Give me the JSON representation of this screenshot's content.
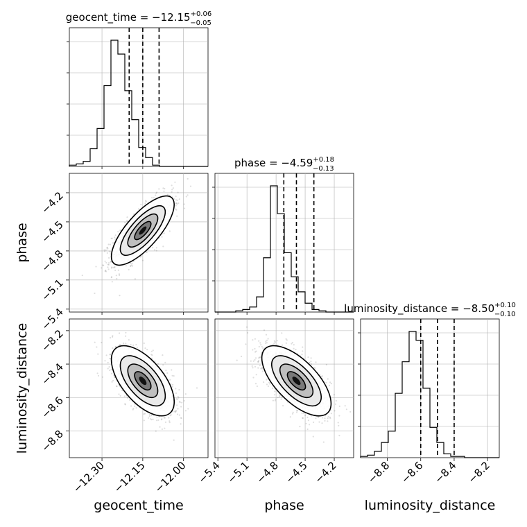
{
  "chart_data": {
    "type": "corner",
    "grid": true,
    "parameters": [
      {
        "name": "geocent_time",
        "axis_label": "geocent_time",
        "title": {
          "prefix": "geocent_time = ",
          "median": "−12.15",
          "upper": "+0.06",
          "lower": "−0.05"
        },
        "median": -12.15,
        "quantiles": [
          -12.2,
          -12.15,
          -12.09
        ],
        "range": [
          -12.42,
          -11.91
        ],
        "ticks": [
          -12.3,
          -12.15,
          -12.0
        ],
        "tick_labels": [
          "−12.30",
          "−12.15",
          "−12.00"
        ],
        "hist_edges_start": -12.42,
        "hist_bin_width": 0.0255,
        "hist_counts": [
          1,
          2,
          4,
          14,
          30,
          64,
          100,
          89,
          60,
          37,
          15,
          7,
          1,
          0,
          0,
          0,
          0,
          0,
          0,
          0
        ]
      },
      {
        "name": "phase",
        "axis_label": "phase",
        "title": {
          "prefix": "phase = ",
          "median": "−4.59",
          "upper": "+0.18",
          "lower": "−0.13"
        },
        "median": -4.59,
        "quantiles": [
          -4.72,
          -4.59,
          -4.41
        ],
        "range": [
          -5.43,
          -4.0
        ],
        "ticks": [
          -5.4,
          -5.1,
          -4.8,
          -4.5,
          -4.2
        ],
        "tick_labels": [
          "−5.4",
          "−5.1",
          "−4.8",
          "−4.5",
          "−4.2"
        ],
        "hist_edges_start": -5.43,
        "hist_bin_width": 0.0715,
        "hist_counts": [
          0,
          0,
          0,
          1,
          2,
          4,
          12,
          43,
          100,
          78,
          47,
          28,
          16,
          7,
          2,
          1,
          0,
          0,
          0,
          0
        ]
      },
      {
        "name": "luminosity_distance",
        "axis_label": "luminosity_distance",
        "title": {
          "prefix": "luminosity_distance = ",
          "median": "−8.50",
          "upper": "+0.10",
          "lower": "−0.10"
        },
        "median": -8.5,
        "quantiles": [
          -8.6,
          -8.5,
          -8.4
        ],
        "range": [
          -8.96,
          -8.13
        ],
        "ticks": [
          -8.8,
          -8.6,
          -8.4,
          -8.2
        ],
        "tick_labels": [
          "−8.8",
          "−8.6",
          "−8.4",
          "−8.2"
        ],
        "hist_edges_start": -8.96,
        "hist_bin_width": 0.0415,
        "hist_counts": [
          1,
          2,
          5,
          12,
          21,
          51,
          76,
          100,
          93,
          55,
          24,
          12,
          3,
          1,
          1,
          0,
          0,
          0,
          0,
          0
        ]
      }
    ],
    "pairs": [
      {
        "x": 0,
        "y": 1,
        "center": [
          -12.15,
          -4.59
        ],
        "correlation": 0.75,
        "spread": [
          0.055,
          0.17
        ]
      },
      {
        "x": 0,
        "y": 2,
        "center": [
          -12.15,
          -8.5
        ],
        "correlation": -0.6,
        "spread": [
          0.055,
          0.1
        ]
      },
      {
        "x": 1,
        "y": 2,
        "center": [
          -4.59,
          -8.5
        ],
        "correlation": -0.65,
        "spread": [
          0.17,
          0.1
        ]
      }
    ]
  }
}
